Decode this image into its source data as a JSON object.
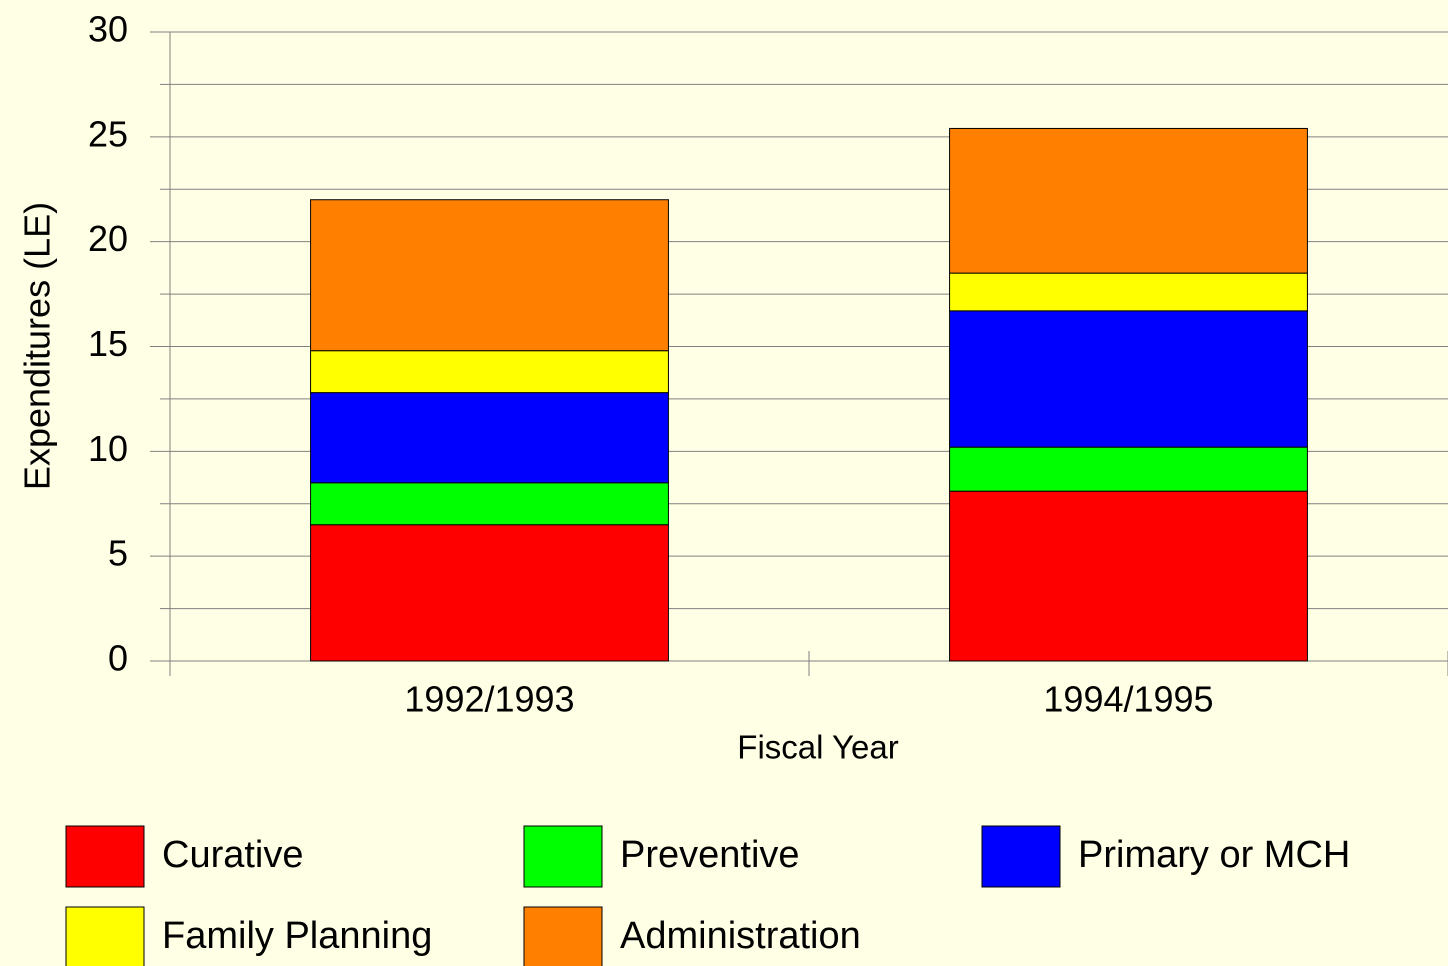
{
  "chart_data": {
    "type": "stacked_bar",
    "y_axis_label": "Expenditures (LE)",
    "x_axis_label": "Fiscal Year",
    "categories": [
      "1992/1993",
      "1994/1995"
    ],
    "series": [
      {
        "name": "Curative",
        "color": "#ff0000",
        "values": [
          6.5,
          8.1
        ]
      },
      {
        "name": "Preventive",
        "color": "#00ff00",
        "values": [
          2.0,
          2.1
        ]
      },
      {
        "name": "Primary or MCH",
        "color": "#0000ff",
        "values": [
          4.3,
          6.5
        ]
      },
      {
        "name": "Family Planning",
        "color": "#ffff00",
        "values": [
          2.0,
          1.8
        ]
      },
      {
        "name": "Administration",
        "color": "#ff8000",
        "values": [
          7.2,
          6.9
        ]
      }
    ],
    "ylim": [
      0,
      30
    ],
    "yticks": [
      0,
      5,
      10,
      15,
      20,
      25,
      30
    ],
    "yminorticks": [
      2.5,
      7.5,
      12.5,
      17.5,
      22.5,
      27.5
    ],
    "grid": true,
    "legend": "bottom"
  }
}
